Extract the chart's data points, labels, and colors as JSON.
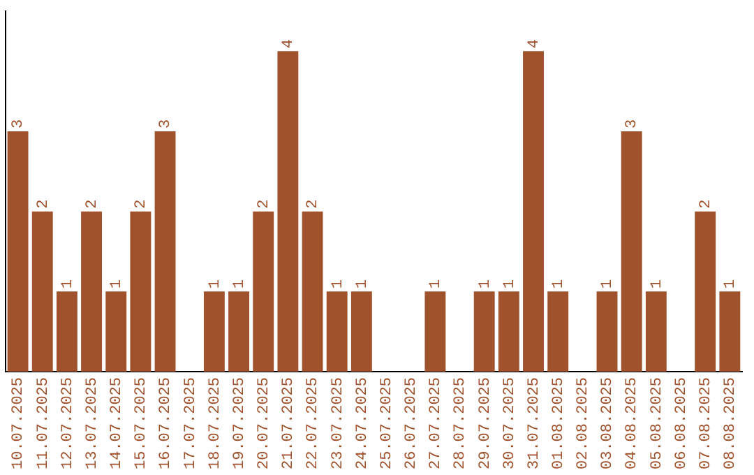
{
  "chart_data": {
    "type": "bar",
    "categories": [
      "10.07.2025",
      "11.07.2025",
      "12.07.2025",
      "13.07.2025",
      "14.07.2025",
      "15.07.2025",
      "16.07.2025",
      "17.07.2025",
      "18.07.2025",
      "19.07.2025",
      "20.07.2025",
      "21.07.2025",
      "22.07.2025",
      "23.07.2025",
      "24.07.2025",
      "25.07.2025",
      "26.07.2025",
      "27.07.2025",
      "28.07.2025",
      "29.07.2025",
      "30.07.2025",
      "31.07.2025",
      "01.08.2025",
      "02.08.2025",
      "03.08.2025",
      "04.08.2025",
      "05.08.2025",
      "06.08.2025",
      "07.08.2025",
      "08.08.2025"
    ],
    "values": [
      3,
      2,
      1,
      2,
      1,
      2,
      3,
      null,
      1,
      1,
      2,
      4,
      2,
      1,
      1,
      null,
      null,
      1,
      null,
      1,
      1,
      4,
      1,
      null,
      1,
      3,
      1,
      null,
      2,
      1
    ],
    "color": "#a0522d",
    "data_labels": true,
    "tick_labels": "x",
    "grid": false,
    "legend": false
  }
}
